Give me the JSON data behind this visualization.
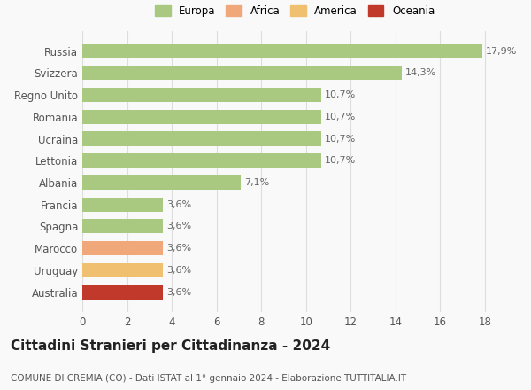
{
  "categories": [
    "Australia",
    "Uruguay",
    "Marocco",
    "Spagna",
    "Francia",
    "Albania",
    "Lettonia",
    "Ucraina",
    "Romania",
    "Regno Unito",
    "Svizzera",
    "Russia"
  ],
  "values": [
    3.6,
    3.6,
    3.6,
    3.6,
    3.6,
    7.1,
    10.7,
    10.7,
    10.7,
    10.7,
    14.3,
    17.9
  ],
  "labels": [
    "3,6%",
    "3,6%",
    "3,6%",
    "3,6%",
    "3,6%",
    "7,1%",
    "10,7%",
    "10,7%",
    "10,7%",
    "10,7%",
    "14,3%",
    "17,9%"
  ],
  "colors": [
    "#c0392b",
    "#f0c070",
    "#f0a87a",
    "#a8c97f",
    "#a8c97f",
    "#a8c97f",
    "#a8c97f",
    "#a8c97f",
    "#a8c97f",
    "#a8c97f",
    "#a8c97f",
    "#a8c97f"
  ],
  "legend": [
    {
      "label": "Europa",
      "color": "#a8c97f"
    },
    {
      "label": "Africa",
      "color": "#f0a87a"
    },
    {
      "label": "America",
      "color": "#f0c070"
    },
    {
      "label": "Oceania",
      "color": "#c0392b"
    }
  ],
  "xlim": [
    0,
    19
  ],
  "xticks": [
    0,
    2,
    4,
    6,
    8,
    10,
    12,
    14,
    16,
    18
  ],
  "title": "Cittadini Stranieri per Cittadinanza - 2024",
  "subtitle": "COMUNE DI CREMIA (CO) - Dati ISTAT al 1° gennaio 2024 - Elaborazione TUTTITALIA.IT",
  "bg_color": "#f9f9f9",
  "grid_color": "#dddddd",
  "bar_height": 0.65,
  "label_fontsize": 8,
  "title_fontsize": 11,
  "subtitle_fontsize": 7.5,
  "tick_fontsize": 8.5
}
